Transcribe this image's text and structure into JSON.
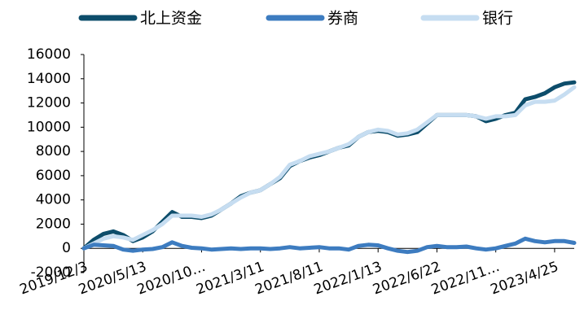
{
  "chart_data": {
    "type": "line",
    "categories": [
      "2019/12/3",
      null,
      null,
      null,
      null,
      null,
      "2020/5/13",
      null,
      null,
      null,
      null,
      null,
      "2020/10…",
      null,
      null,
      null,
      null,
      null,
      "2021/3/11",
      null,
      null,
      null,
      null,
      null,
      "2021/8/11",
      null,
      null,
      null,
      null,
      null,
      "2022/1/13",
      null,
      null,
      null,
      null,
      null,
      "2022/6/22",
      null,
      null,
      null,
      null,
      null,
      "2022/11…",
      null,
      null,
      null,
      null,
      null,
      "2023/4/25",
      null,
      null
    ],
    "series": [
      {
        "name": "北上资金",
        "color": "#0d4d6b",
        "values": [
          0,
          700,
          1200,
          1400,
          1100,
          600,
          900,
          1400,
          2200,
          3000,
          2600,
          2600,
          2500,
          2700,
          3200,
          3700,
          4300,
          4600,
          4800,
          5300,
          5800,
          6800,
          7200,
          7500,
          7700,
          8000,
          8300,
          8500,
          9200,
          9600,
          9700,
          9600,
          9300,
          9400,
          9600,
          10300,
          11000,
          11000,
          11000,
          11000,
          10900,
          10500,
          10700,
          11000,
          11200,
          12300,
          12500,
          12800,
          13300,
          13600,
          13700
        ]
      },
      {
        "name": "券商",
        "color": "#3d7cc0",
        "values": [
          0,
          300,
          250,
          200,
          -100,
          -200,
          -100,
          -50,
          100,
          500,
          200,
          50,
          0,
          -100,
          -50,
          0,
          -50,
          0,
          0,
          -50,
          0,
          100,
          0,
          50,
          100,
          0,
          0,
          -100,
          200,
          300,
          250,
          0,
          -200,
          -300,
          -200,
          100,
          200,
          100,
          100,
          150,
          0,
          -100,
          0,
          200,
          400,
          800,
          600,
          500,
          600,
          600,
          450
        ]
      },
      {
        "name": "银行",
        "color": "#c6ddf1",
        "values": [
          0,
          400,
          800,
          1000,
          900,
          700,
          1100,
          1500,
          2000,
          2700,
          2700,
          2700,
          2600,
          2800,
          3200,
          3700,
          4200,
          4600,
          4800,
          5300,
          5900,
          6900,
          7200,
          7600,
          7800,
          8000,
          8300,
          8600,
          9200,
          9600,
          9800,
          9700,
          9400,
          9500,
          9800,
          10400,
          11000,
          11000,
          11000,
          11000,
          10900,
          10700,
          10900,
          10900,
          11000,
          11800,
          12100,
          12100,
          12200,
          12700,
          13300
        ]
      }
    ],
    "ylim": [
      -2000,
      16000
    ],
    "yticks": [
      -2000,
      0,
      2000,
      4000,
      6000,
      8000,
      10000,
      12000,
      14000,
      16000
    ],
    "grid": false
  }
}
